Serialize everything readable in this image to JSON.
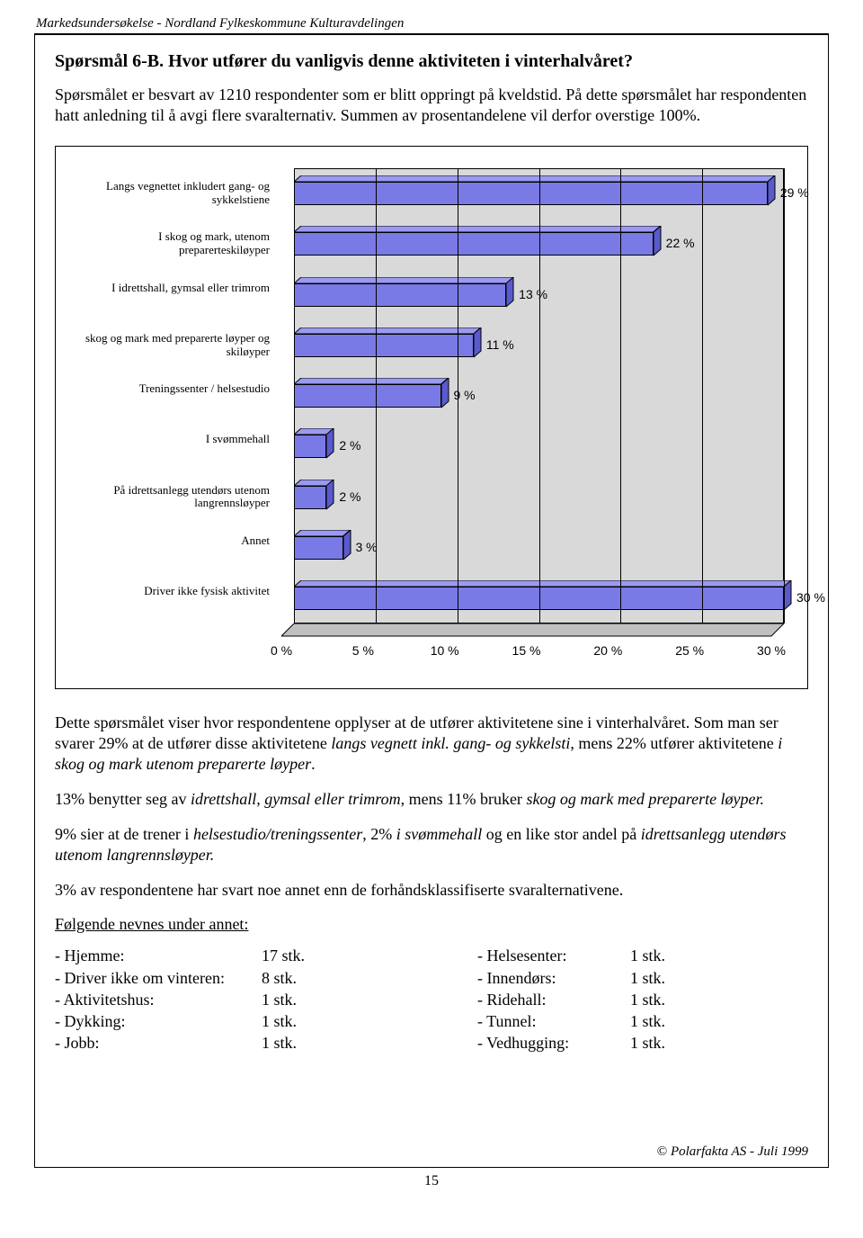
{
  "header": "Markedsundersøkelse - Nordland Fylkeskommune Kulturavdelingen",
  "question_title": "Spørsmål 6-B. Hvor utfører du vanligvis denne aktiviteten i vinterhalvåret?",
  "intro": "Spørsmålet er besvart av 1210 respondenter som er blitt oppringt på kveldstid. På dette spørsmålet har respondenten hatt anledning til å avgi flere svaralternativ. Summen av prosentandelene vil derfor overstige 100%.",
  "chart": {
    "type": "bar-horizontal-3d",
    "bar_color": "#7a7ae6",
    "bar_top_color": "#9a9af0",
    "bar_side_color": "#5a5acc",
    "wall_color": "#d9d9d9",
    "floor_color": "#c0c0c0",
    "label_fontsize": 13,
    "value_fontsize": 14,
    "xmax": 30,
    "xtick_step": 5,
    "xticks": [
      "0 %",
      "5 %",
      "10 %",
      "15 %",
      "20 %",
      "25 %",
      "30 %"
    ],
    "categories": [
      "Langs vegnettet inkludert gang- og sykkelstiene",
      "I skog og mark, utenom preparerteskiløyper",
      "I idrettshall, gymsal eller trimrom",
      "skog og mark med preparerte løyper og skiløyper",
      "Treningssenter / helsestudio",
      "I svømmehall",
      "På idrettsanlegg utendørs utenom langrennsløyper",
      "Annet",
      "Driver ikke fysisk aktivitet"
    ],
    "values": [
      29,
      22,
      13,
      11,
      9,
      2,
      2,
      3,
      30
    ],
    "value_labels": [
      "29 %",
      "22 %",
      "13 %",
      "11 %",
      "9 %",
      "2 %",
      "2 %",
      "3 %",
      "30 %"
    ]
  },
  "para1_a": "Dette spørsmålet viser hvor respondentene opplyser at de utfører aktivitetene sine i vinterhalvåret. Som man ser svarer 29% at de utfører disse aktivitetene ",
  "para1_i1": "langs vegnett inkl. gang- og sykkelsti",
  "para1_b": ", mens 22% utfører aktivitetene ",
  "para1_i2": "i skog og mark utenom preparerte løyper",
  "para1_c": ".",
  "para2_a": "13% benytter seg av ",
  "para2_i1": "idrettshall, gymsal eller trimrom",
  "para2_b": ", mens 11% bruker ",
  "para2_i2": "skog og mark med preparerte løyper.",
  "para3_a": "9% sier at de trener i ",
  "para3_i1": "helsestudio/treningssenter",
  "para3_b": ", 2% ",
  "para3_i2": "i svømmehall",
  "para3_c": " og en like stor andel på ",
  "para3_i3": "idrettsanlegg utendørs utenom langrennsløyper.",
  "para4": "3% av respondentene har svart noe annet enn de forhåndsklassifiserte svaralternativene.",
  "annet_title": "Følgende nevnes under annet:",
  "annet_left": [
    {
      "label": "- Hjemme:",
      "count": "17 stk."
    },
    {
      "label": "- Driver ikke om vinteren:",
      "count": "8 stk."
    },
    {
      "label": "- Aktivitetshus:",
      "count": "1 stk."
    },
    {
      "label": "- Dykking:",
      "count": "1 stk."
    },
    {
      "label": "- Jobb:",
      "count": "1 stk."
    }
  ],
  "annet_right": [
    {
      "label": "- Helsesenter:",
      "count": "1 stk."
    },
    {
      "label": "- Innendørs:",
      "count": "1 stk."
    },
    {
      "label": "- Ridehall:",
      "count": "1 stk."
    },
    {
      "label": "- Tunnel:",
      "count": "1 stk."
    },
    {
      "label": "- Vedhugging:",
      "count": "1 stk."
    }
  ],
  "footer_symbol": "©",
  "footer_text": " Polarfakta AS - Juli 1999",
  "page_number": "15"
}
